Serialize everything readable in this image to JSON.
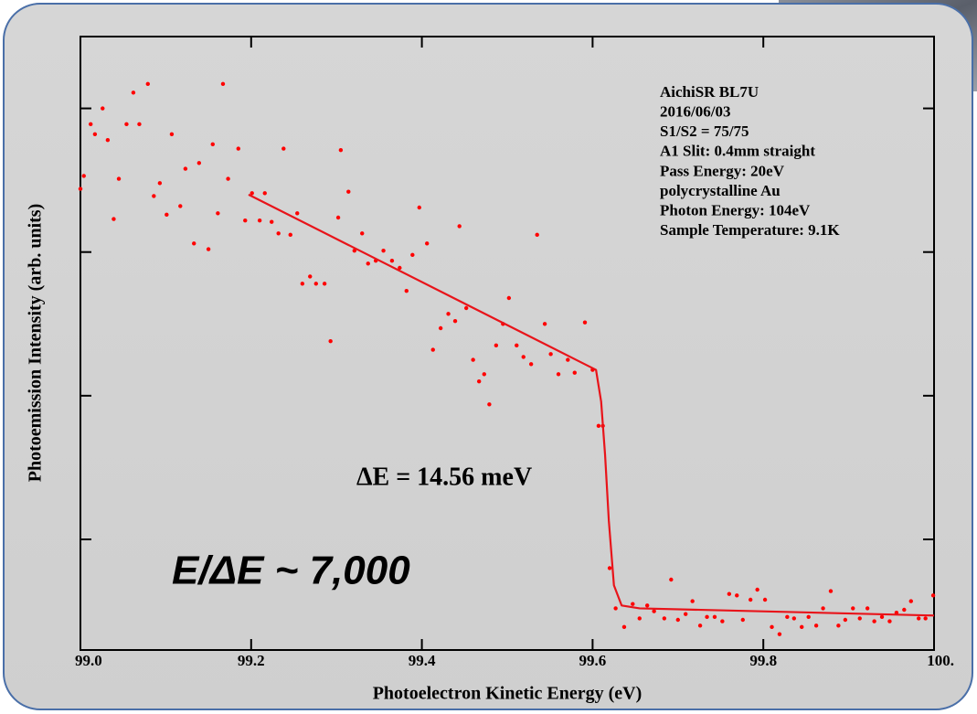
{
  "chart_data": {
    "type": "scatter",
    "xlabel": "Photoelectron Kinetic Energy (eV)",
    "ylabel": "Photoemission Intensity (arb. units)",
    "xlim": [
      99.0,
      100.0
    ],
    "ylim": [
      -0.77,
      3.5
    ],
    "xticks": [
      {
        "value": 99.0,
        "label": "99.0"
      },
      99.2,
      99.4,
      99.6,
      99.8,
      {
        "value": 100.0,
        "label": "100."
      }
    ],
    "yticks": [
      0,
      1,
      2,
      3
    ],
    "annotations": [
      "AichiSR BL7U",
      "2016/06/03",
      "S1/S2 = 75/75",
      "A1 Slit: 0.4mm straight",
      "Pass Energy: 20eV",
      "polycrystalline Au",
      "Photon Energy: 104eV",
      "Sample Temperature: 9.1K"
    ],
    "resolution_label": "ΔE = 14.56 meV",
    "resolving_power_label": "E/ΔE ~ 7,000",
    "series": [
      {
        "color": "#ff0000",
        "x": [
          99.0,
          99.004,
          99.012,
          99.017,
          99.026,
          99.032,
          99.039,
          99.045,
          99.054,
          99.062,
          99.069,
          99.079,
          99.086,
          99.093,
          99.101,
          99.107,
          99.117,
          99.123,
          99.133,
          99.139,
          99.15,
          99.155,
          99.161,
          99.167,
          99.173,
          99.185,
          99.193,
          99.201,
          99.21,
          99.216,
          99.224,
          99.232,
          99.238,
          99.246,
          99.254,
          99.26,
          99.269,
          99.276,
          99.286,
          99.293,
          99.302,
          99.305,
          99.314,
          99.321,
          99.33,
          99.337,
          99.346,
          99.355,
          99.365,
          99.374,
          99.382,
          99.389,
          99.397,
          99.406,
          99.413,
          99.422,
          99.431,
          99.439,
          99.444,
          99.452,
          99.46,
          99.467,
          99.473,
          99.479,
          99.487,
          99.495,
          99.502,
          99.511,
          99.519,
          99.528,
          99.535,
          99.544,
          99.551,
          99.56,
          99.571,
          99.579,
          99.591,
          99.6,
          99.607,
          99.612,
          99.62,
          99.627,
          99.637,
          99.647,
          99.655,
          99.664,
          99.672,
          99.684,
          99.692,
          99.7,
          99.709,
          99.717,
          99.726,
          99.734,
          99.743,
          99.752,
          99.76,
          99.769,
          99.776,
          99.785,
          99.793,
          99.802,
          99.81,
          99.819,
          99.828,
          99.836,
          99.845,
          99.853,
          99.862,
          99.87,
          99.879,
          99.888,
          99.896,
          99.905,
          99.913,
          99.922,
          99.93,
          99.939,
          99.948,
          99.956,
          99.965,
          99.973,
          99.982,
          99.99,
          99.999
        ],
        "values": [
          2.44,
          2.53,
          2.89,
          2.82,
          3.0,
          2.78,
          2.23,
          2.51,
          2.89,
          3.11,
          2.89,
          3.17,
          2.39,
          2.48,
          2.26,
          2.82,
          2.32,
          2.58,
          2.06,
          2.62,
          2.02,
          2.75,
          2.27,
          3.17,
          2.51,
          2.72,
          2.22,
          2.41,
          2.22,
          2.41,
          2.21,
          2.13,
          2.72,
          2.12,
          2.27,
          1.78,
          1.83,
          1.78,
          1.78,
          1.38,
          2.24,
          2.71,
          2.42,
          2.01,
          2.13,
          1.92,
          1.94,
          2.01,
          1.94,
          1.89,
          1.73,
          1.98,
          2.31,
          2.06,
          1.32,
          1.47,
          1.57,
          1.52,
          2.18,
          1.61,
          1.25,
          1.1,
          1.15,
          0.94,
          1.35,
          1.5,
          1.68,
          1.35,
          1.27,
          1.22,
          2.12,
          1.5,
          1.29,
          1.15,
          1.25,
          1.16,
          1.51,
          1.18,
          0.79,
          0.79,
          -0.2,
          -0.48,
          -0.61,
          -0.45,
          -0.55,
          -0.46,
          -0.5,
          -0.55,
          -0.28,
          -0.56,
          -0.52,
          -0.43,
          -0.6,
          -0.54,
          -0.54,
          -0.57,
          -0.38,
          -0.39,
          -0.56,
          -0.42,
          -0.35,
          -0.42,
          -0.61,
          -0.66,
          -0.54,
          -0.55,
          -0.61,
          -0.54,
          -0.6,
          -0.48,
          -0.36,
          -0.6,
          -0.56,
          -0.48,
          -0.55,
          -0.48,
          -0.57,
          -0.54,
          -0.57,
          -0.51,
          -0.49,
          -0.43,
          -0.55,
          -0.55,
          -0.39
        ]
      },
      {
        "type": "line",
        "color": "#e8141a",
        "x": [
          99.197,
          99.604,
          99.61,
          99.6146,
          99.619,
          99.625,
          99.634,
          99.655,
          100.0
        ],
        "values": [
          2.4,
          1.18,
          0.96,
          0.59,
          0.13,
          -0.32,
          -0.46,
          -0.48,
          -0.53
        ]
      }
    ]
  }
}
